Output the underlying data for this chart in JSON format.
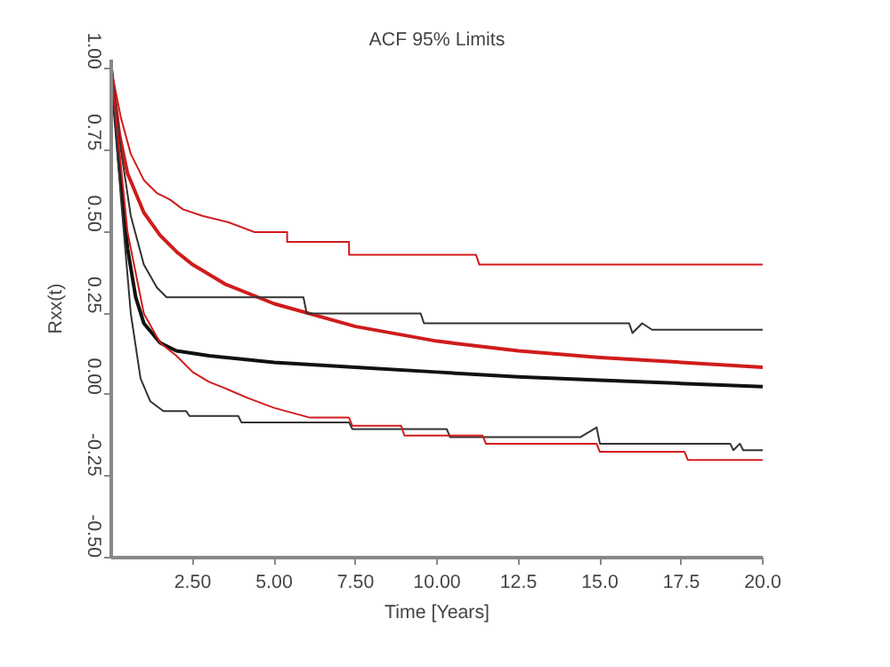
{
  "chart_data": {
    "type": "line",
    "title": "ACF 95% Limits",
    "xlabel": "Time [Years]",
    "ylabel": "Rxx(t)",
    "xlim": [
      0,
      20
    ],
    "ylim": [
      -0.5,
      1.03
    ],
    "xticks": [
      {
        "value": 2.5,
        "label": "2.50"
      },
      {
        "value": 5,
        "label": "5.00"
      },
      {
        "value": 7.5,
        "label": "7.50"
      },
      {
        "value": 10,
        "label": "10.00"
      },
      {
        "value": 12.5,
        "label": "12.5"
      },
      {
        "value": 15,
        "label": "15.0"
      },
      {
        "value": 17.5,
        "label": "17.5"
      },
      {
        "value": 20,
        "label": "20.0"
      }
    ],
    "yticks": [
      {
        "value": -0.5,
        "label": "-0.50"
      },
      {
        "value": -0.25,
        "label": "-0.25"
      },
      {
        "value": 0,
        "label": "0.00"
      },
      {
        "value": 0.25,
        "label": "0.25"
      },
      {
        "value": 0.5,
        "label": "0.50"
      },
      {
        "value": 0.75,
        "label": "0.75"
      },
      {
        "value": 1,
        "label": "1.00"
      }
    ],
    "grid": false,
    "marker": "none",
    "line_style": "solid",
    "series": [
      {
        "color": "#d01c1c",
        "x": [
          0,
          0.25,
          0.5,
          1,
          1.5,
          2,
          2.5,
          3.5,
          5,
          7.5,
          10,
          12.5,
          15,
          17.5,
          20
        ],
        "values": [
          1,
          0.8,
          0.68,
          0.56,
          0.49,
          0.44,
          0.4,
          0.34,
          0.28,
          0.21,
          0.165,
          0.135,
          0.115,
          0.1,
          0.085
        ]
      },
      {
        "color": "#111111",
        "x": [
          0,
          0.25,
          0.5,
          0.75,
          1,
          1.5,
          2,
          3,
          5,
          7.5,
          10,
          12.5,
          15,
          17.5,
          20
        ],
        "values": [
          1,
          0.7,
          0.45,
          0.3,
          0.22,
          0.16,
          0.135,
          0.12,
          0.1,
          0.085,
          0.07,
          0.055,
          0.045,
          0.035,
          0.025
        ]
      },
      {
        "color": "#d01c1c",
        "x": [
          0,
          0.3,
          0.6,
          1,
          1.4,
          1.8,
          2.2,
          2.8,
          3.6,
          4.4,
          5.4,
          5.4,
          7.3,
          7.3,
          11.2,
          11.3,
          20
        ],
        "values": [
          1,
          0.85,
          0.74,
          0.66,
          0.62,
          0.6,
          0.57,
          0.55,
          0.53,
          0.5,
          0.5,
          0.47,
          0.47,
          0.43,
          0.43,
          0.4,
          0.4
        ]
      },
      {
        "color": "#333333",
        "x": [
          0,
          0.3,
          0.6,
          1,
          1.4,
          1.7,
          5.9,
          6.0,
          9.5,
          9.6,
          15.9,
          16.0,
          16.3,
          16.6,
          20
        ],
        "values": [
          1,
          0.75,
          0.55,
          0.4,
          0.33,
          0.3,
          0.3,
          0.25,
          0.25,
          0.22,
          0.22,
          0.19,
          0.22,
          0.2,
          0.2
        ]
      },
      {
        "color": "#333333",
        "x": [
          0,
          0.3,
          0.6,
          0.9,
          1.2,
          1.6,
          2.3,
          2.4,
          3.9,
          4.0,
          7.3,
          7.4,
          10.3,
          10.4,
          14.4,
          14.9,
          15.0,
          19.0,
          19.1,
          19.3,
          19.4,
          20
        ],
        "values": [
          1,
          0.6,
          0.25,
          0.05,
          -0.02,
          -0.05,
          -0.05,
          -0.065,
          -0.065,
          -0.085,
          -0.085,
          -0.105,
          -0.105,
          -0.13,
          -0.13,
          -0.1,
          -0.15,
          -0.15,
          -0.17,
          -0.15,
          -0.17,
          -0.17
        ]
      },
      {
        "color": "#d01c1c",
        "x": [
          0,
          0.5,
          1,
          1.5,
          2,
          2.5,
          3,
          3.5,
          4.2,
          5,
          6.1,
          7.3,
          7.4,
          8.9,
          9.0,
          11.4,
          11.5,
          14.9,
          15.0,
          17.6,
          17.7,
          20
        ],
        "values": [
          1,
          0.5,
          0.25,
          0.16,
          0.12,
          0.07,
          0.04,
          0.02,
          -0.01,
          -0.04,
          -0.07,
          -0.07,
          -0.095,
          -0.095,
          -0.125,
          -0.125,
          -0.15,
          -0.15,
          -0.175,
          -0.175,
          -0.2,
          -0.2
        ]
      }
    ]
  }
}
